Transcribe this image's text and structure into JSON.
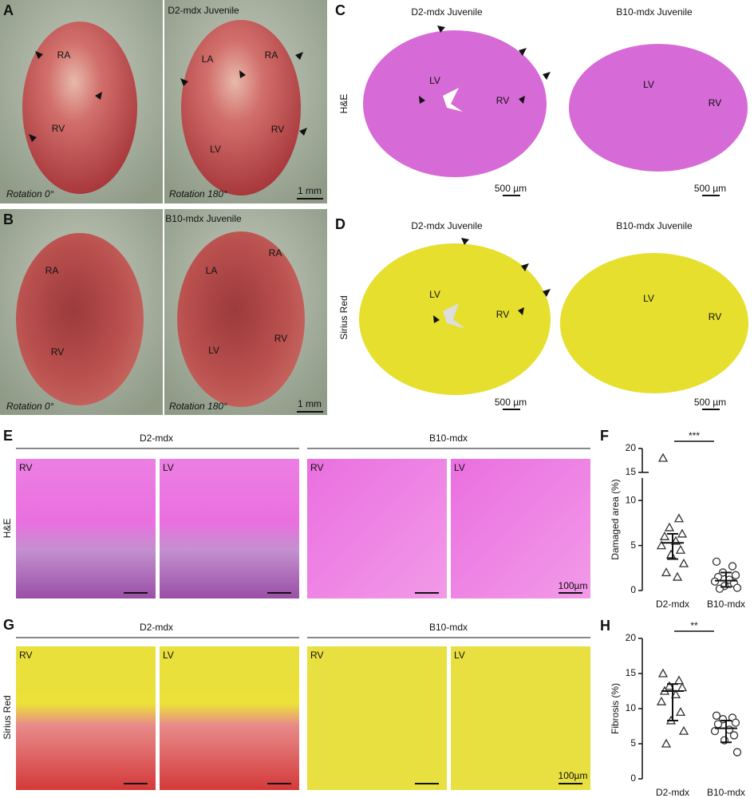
{
  "figure": {
    "A": {
      "letter": "A",
      "title": "D2-mdx Juvenile",
      "left": {
        "labels": [
          "RA",
          "RV"
        ],
        "caption": "Rotation 0°"
      },
      "right": {
        "labels": [
          "LA",
          "RA",
          "RV",
          "LV"
        ],
        "caption": "Rotation 180°"
      },
      "scale_bar": "1 mm"
    },
    "B": {
      "letter": "B",
      "title": "B10-mdx Juvenile",
      "left": {
        "labels": [
          "RA",
          "RV"
        ],
        "caption": "Rotation 0°"
      },
      "right": {
        "labels": [
          "LA",
          "RA",
          "LV",
          "RV"
        ],
        "caption": "Rotation 180°"
      },
      "scale_bar": "1 mm"
    },
    "C": {
      "letter": "C",
      "stain": "H&E",
      "left": {
        "title": "D2-mdx Juvenile",
        "labels": [
          "LV",
          "RV"
        ],
        "scale_bar": "500 µm"
      },
      "right": {
        "title": "B10-mdx Juvenile",
        "labels": [
          "LV",
          "RV"
        ],
        "scale_bar": "500 µm"
      }
    },
    "D": {
      "letter": "D",
      "stain": "Sirius Red",
      "left": {
        "title": "D2-mdx Juvenile",
        "labels": [
          "LV",
          "RV"
        ],
        "scale_bar": "500 µm"
      },
      "right": {
        "title": "B10-mdx Juvenile",
        "labels": [
          "LV",
          "RV"
        ],
        "scale_bar": "500 µm"
      }
    },
    "E": {
      "letter": "E",
      "stain": "H&E",
      "groups": [
        "D2-mdx",
        "B10-mdx"
      ],
      "tiles": [
        "RV",
        "LV",
        "RV",
        "LV"
      ],
      "scale_bar": "100µm"
    },
    "G": {
      "letter": "G",
      "stain": "Sirius Red",
      "groups": [
        "D2-mdx",
        "B10-mdx"
      ],
      "tiles": [
        "RV",
        "LV",
        "RV",
        "LV"
      ],
      "scale_bar": "100µm"
    }
  },
  "chart_data": [
    {
      "type": "scatter",
      "letter": "F",
      "ylabel": "Damaged area (%)",
      "categories": [
        "D2-mdx",
        "B10-mdx"
      ],
      "significance": "***",
      "ylim": [
        0,
        20
      ],
      "axis_break": [
        12.5,
        15
      ],
      "yticks": [
        0,
        5,
        10,
        15,
        20
      ],
      "series": [
        {
          "marker": "triangle",
          "color": "#333333",
          "values": [
            18,
            8,
            7,
            6.3,
            6,
            5.5,
            5,
            4.5,
            4,
            3,
            2,
            1.5
          ],
          "center": 5.3,
          "range": [
            3.5,
            6.3
          ]
        },
        {
          "marker": "circle",
          "color": "#333333",
          "values": [
            3.2,
            2.7,
            2.0,
            1.7,
            1.5,
            1.2,
            1.0,
            0.8,
            0.5,
            0.3,
            0.2
          ],
          "center": 1.1,
          "range": [
            0.4,
            2.0
          ]
        }
      ]
    },
    {
      "type": "scatter",
      "letter": "H",
      "ylabel": "Fibrosis (%)",
      "categories": [
        "D2-mdx",
        "B10-mdx"
      ],
      "significance": "**",
      "ylim": [
        0,
        20
      ],
      "yticks": [
        0,
        5,
        10,
        15,
        20
      ],
      "series": [
        {
          "marker": "triangle",
          "color": "#333333",
          "values": [
            15,
            14,
            13.2,
            13,
            12.5,
            12,
            11,
            9.5,
            8.3,
            6.8,
            5
          ],
          "center": 12.5,
          "range": [
            8.3,
            13.5
          ]
        },
        {
          "marker": "circle",
          "color": "#333333",
          "values": [
            9,
            8.7,
            8.5,
            8,
            7.8,
            7,
            6.8,
            6.2,
            5.5,
            3.8
          ],
          "center": 7.2,
          "range": [
            5.2,
            8.3
          ]
        }
      ]
    }
  ]
}
